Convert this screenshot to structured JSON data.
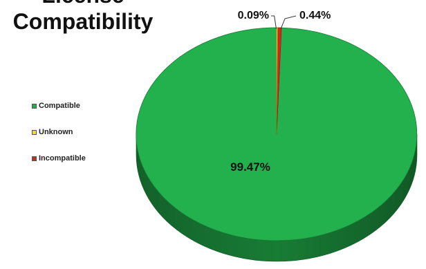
{
  "chart_data": {
    "type": "pie",
    "title": [
      "License",
      "Compatibility"
    ],
    "categories": [
      "Compatible",
      "Unknown",
      "Incompatible"
    ],
    "values": [
      99.47,
      0.09,
      0.44
    ],
    "value_labels": [
      "99.47%",
      "0.09%",
      "0.44%"
    ],
    "colors": [
      "#22b14c",
      "#f0e020",
      "#cc2a1e"
    ],
    "legend_position": "left",
    "three_d": true
  }
}
